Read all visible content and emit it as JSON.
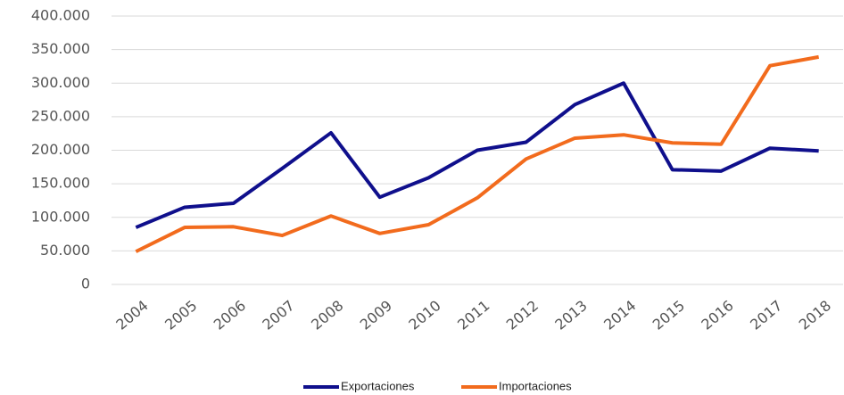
{
  "chart_data": {
    "type": "line",
    "categories": [
      "2004",
      "2005",
      "2006",
      "2007",
      "2008",
      "2009",
      "2010",
      "2011",
      "2012",
      "2013",
      "2014",
      "2015",
      "2016",
      "2017",
      "2018"
    ],
    "series": [
      {
        "name": "Exportaciones",
        "color": "#0f0f8c",
        "values": [
          85000,
          115000,
          121000,
          173000,
          226000,
          130000,
          159000,
          200000,
          212000,
          268000,
          300000,
          171000,
          169000,
          203000,
          199000
        ]
      },
      {
        "name": "Importaciones",
        "color": "#f26b1d",
        "values": [
          49000,
          85000,
          86000,
          73000,
          102000,
          76000,
          89000,
          129000,
          187000,
          218000,
          223000,
          211000,
          209000,
          326000,
          339000
        ]
      }
    ],
    "ylim": [
      0,
      400000
    ],
    "yticks": [
      0,
      {
        "value": 50000,
        "label": "50.000"
      },
      {
        "value": 100000,
        "label": "100.000"
      },
      {
        "value": 150000,
        "label": "150.000"
      },
      {
        "value": 200000,
        "label": "200.000"
      },
      {
        "value": 250000,
        "label": "250.000"
      },
      {
        "value": 300000,
        "label": "300.000"
      },
      {
        "value": 350000,
        "label": "350.000"
      },
      {
        "value": 400000,
        "label": "400.000"
      }
    ],
    "grid": true,
    "legend": "bottom"
  }
}
